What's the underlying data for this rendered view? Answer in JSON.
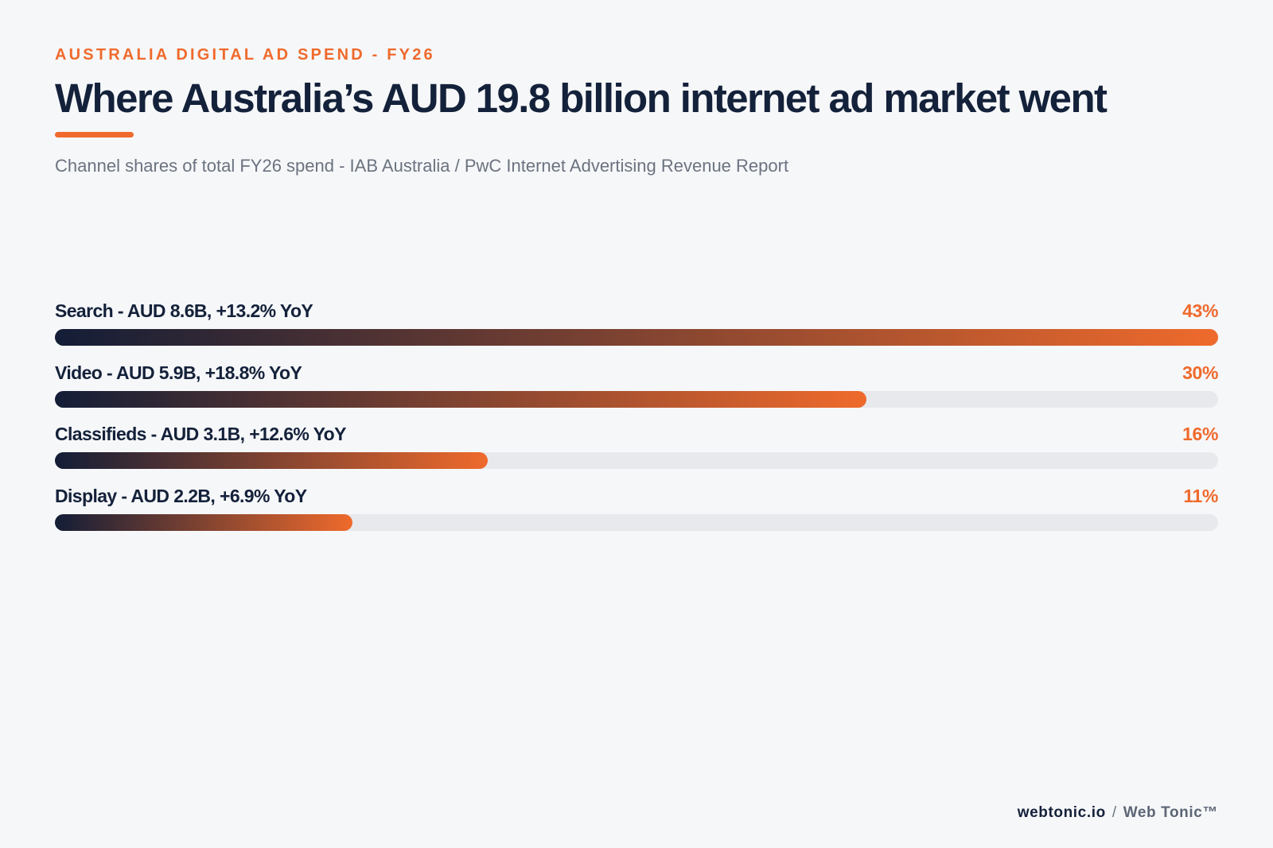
{
  "eyebrow": "AUSTRALIA DIGITAL AD SPEND - FY26",
  "title": "Where Australia’s AUD 19.8 billion internet ad market went",
  "subtitle": "Channel shares of total FY26 spend - IAB Australia / PwC Internet Advertising Revenue Report",
  "footer": {
    "site": "webtonic.io",
    "separator": "/",
    "brand": "Web Tonic™"
  },
  "colors": {
    "accent": "#ef6a2c",
    "navy": "#14213a",
    "track": "#e7e9ed",
    "background": "#f6f7f9"
  },
  "chart_data": {
    "type": "bar",
    "orientation": "horizontal",
    "categories": [
      "Search - AUD 8.6B, +13.2% YoY",
      "Video - AUD 5.9B, +18.8% YoY",
      "Classifieds - AUD 3.1B, +12.6% YoY",
      "Display - AUD 2.2B, +6.9% YoY"
    ],
    "values": [
      43,
      30,
      16,
      11
    ],
    "value_labels": [
      "43%",
      "30%",
      "16%",
      "11%"
    ],
    "xlim": [
      0,
      43
    ],
    "grid": false,
    "legend": "none"
  }
}
